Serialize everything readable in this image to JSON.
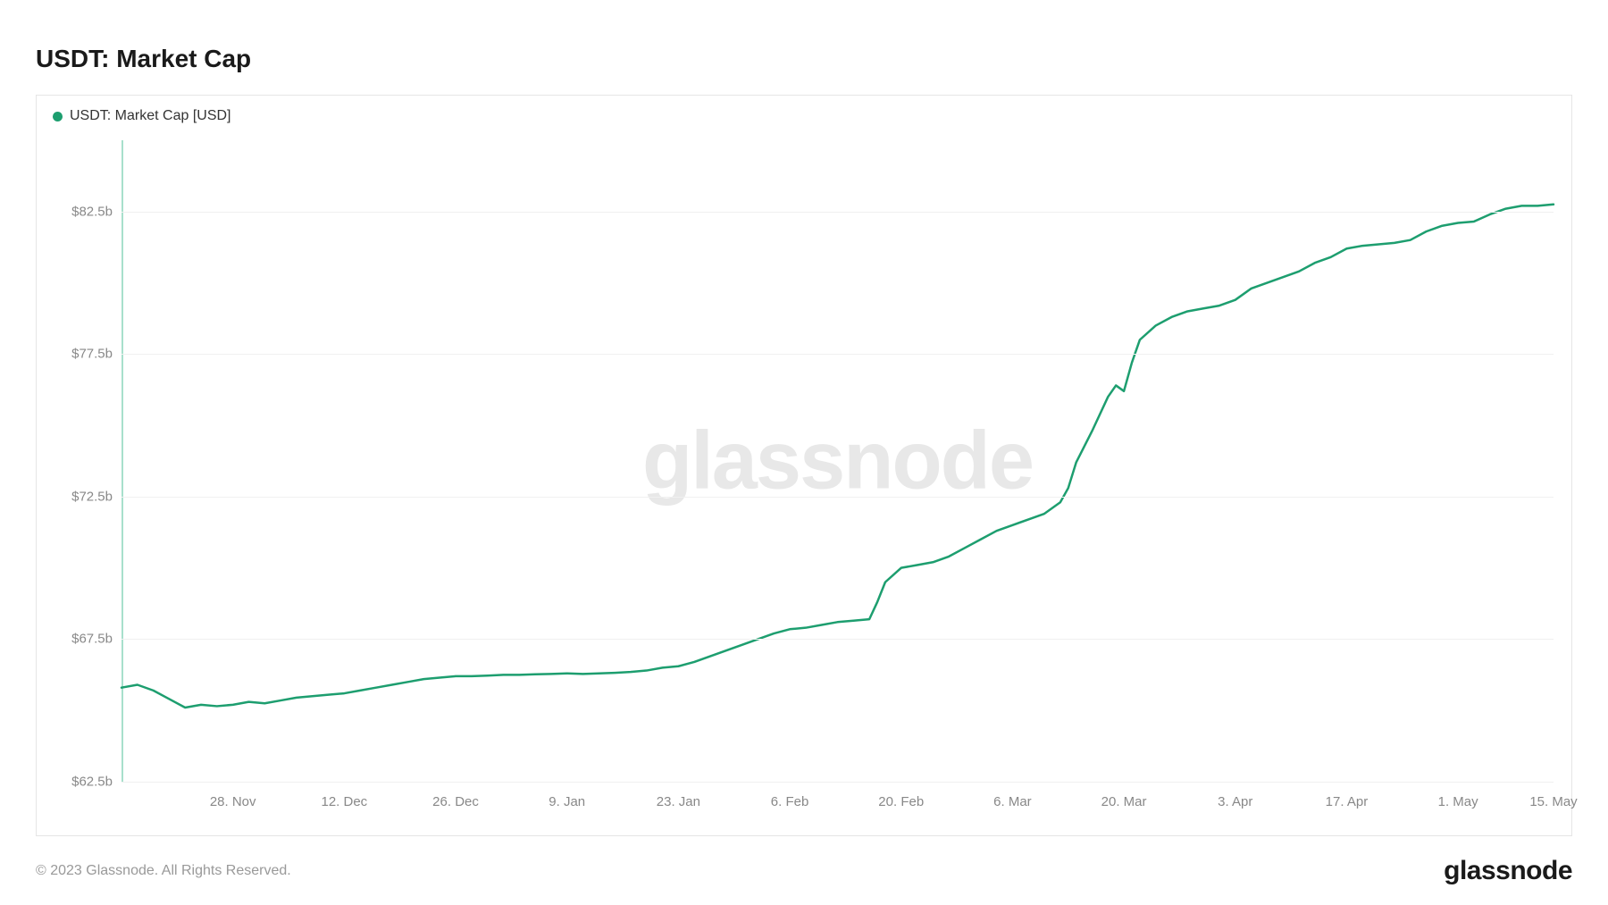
{
  "title": "USDT: Market Cap",
  "legend": {
    "label": "USDT: Market Cap [USD]",
    "color": "#1d9e6f"
  },
  "copyright": "© 2023 Glassnode. All Rights Reserved.",
  "brand": "glassnode",
  "watermark": "glassnode",
  "chart": {
    "type": "line",
    "background_color": "#ffffff",
    "grid_color": "#f0f0f0",
    "border_color": "#e5e5e5",
    "line_color": "#1d9e6f",
    "line_width": 2.5,
    "left_edge_color": "#a8e0cc",
    "ylim": [
      62.5,
      85
    ],
    "yticks": [
      {
        "v": 62.5,
        "label": "$62.5b"
      },
      {
        "v": 67.5,
        "label": "$67.5b"
      },
      {
        "v": 72.5,
        "label": "$72.5b"
      },
      {
        "v": 77.5,
        "label": "$77.5b"
      },
      {
        "v": 82.5,
        "label": "$82.5b"
      }
    ],
    "xlim": [
      0,
      180
    ],
    "xticks": [
      {
        "v": 14,
        "label": "28. Nov"
      },
      {
        "v": 28,
        "label": "12. Dec"
      },
      {
        "v": 42,
        "label": "26. Dec"
      },
      {
        "v": 56,
        "label": "9. Jan"
      },
      {
        "v": 70,
        "label": "23. Jan"
      },
      {
        "v": 84,
        "label": "6. Feb"
      },
      {
        "v": 98,
        "label": "20. Feb"
      },
      {
        "v": 112,
        "label": "6. Mar"
      },
      {
        "v": 126,
        "label": "20. Mar"
      },
      {
        "v": 140,
        "label": "3. Apr"
      },
      {
        "v": 154,
        "label": "17. Apr"
      },
      {
        "v": 168,
        "label": "1. May"
      },
      {
        "v": 180,
        "label": "15. May"
      }
    ],
    "series": [
      {
        "x": 0,
        "y": 65.8
      },
      {
        "x": 2,
        "y": 65.9
      },
      {
        "x": 4,
        "y": 65.7
      },
      {
        "x": 6,
        "y": 65.4
      },
      {
        "x": 8,
        "y": 65.1
      },
      {
        "x": 10,
        "y": 65.2
      },
      {
        "x": 12,
        "y": 65.15
      },
      {
        "x": 14,
        "y": 65.2
      },
      {
        "x": 16,
        "y": 65.3
      },
      {
        "x": 18,
        "y": 65.25
      },
      {
        "x": 20,
        "y": 65.35
      },
      {
        "x": 22,
        "y": 65.45
      },
      {
        "x": 24,
        "y": 65.5
      },
      {
        "x": 26,
        "y": 65.55
      },
      {
        "x": 28,
        "y": 65.6
      },
      {
        "x": 30,
        "y": 65.7
      },
      {
        "x": 32,
        "y": 65.8
      },
      {
        "x": 34,
        "y": 65.9
      },
      {
        "x": 36,
        "y": 66.0
      },
      {
        "x": 38,
        "y": 66.1
      },
      {
        "x": 40,
        "y": 66.15
      },
      {
        "x": 42,
        "y": 66.2
      },
      {
        "x": 44,
        "y": 66.2
      },
      {
        "x": 46,
        "y": 66.22
      },
      {
        "x": 48,
        "y": 66.25
      },
      {
        "x": 50,
        "y": 66.25
      },
      {
        "x": 52,
        "y": 66.27
      },
      {
        "x": 54,
        "y": 66.28
      },
      {
        "x": 56,
        "y": 66.3
      },
      {
        "x": 58,
        "y": 66.28
      },
      {
        "x": 60,
        "y": 66.3
      },
      {
        "x": 62,
        "y": 66.32
      },
      {
        "x": 64,
        "y": 66.35
      },
      {
        "x": 66,
        "y": 66.4
      },
      {
        "x": 68,
        "y": 66.5
      },
      {
        "x": 70,
        "y": 66.55
      },
      {
        "x": 72,
        "y": 66.7
      },
      {
        "x": 74,
        "y": 66.9
      },
      {
        "x": 76,
        "y": 67.1
      },
      {
        "x": 78,
        "y": 67.3
      },
      {
        "x": 80,
        "y": 67.5
      },
      {
        "x": 82,
        "y": 67.7
      },
      {
        "x": 84,
        "y": 67.85
      },
      {
        "x": 86,
        "y": 67.9
      },
      {
        "x": 88,
        "y": 68.0
      },
      {
        "x": 90,
        "y": 68.1
      },
      {
        "x": 92,
        "y": 68.15
      },
      {
        "x": 94,
        "y": 68.2
      },
      {
        "x": 95,
        "y": 68.8
      },
      {
        "x": 96,
        "y": 69.5
      },
      {
        "x": 98,
        "y": 70.0
      },
      {
        "x": 100,
        "y": 70.1
      },
      {
        "x": 102,
        "y": 70.2
      },
      {
        "x": 104,
        "y": 70.4
      },
      {
        "x": 106,
        "y": 70.7
      },
      {
        "x": 108,
        "y": 71.0
      },
      {
        "x": 110,
        "y": 71.3
      },
      {
        "x": 112,
        "y": 71.5
      },
      {
        "x": 114,
        "y": 71.7
      },
      {
        "x": 116,
        "y": 71.9
      },
      {
        "x": 118,
        "y": 72.3
      },
      {
        "x": 119,
        "y": 72.8
      },
      {
        "x": 120,
        "y": 73.7
      },
      {
        "x": 122,
        "y": 74.8
      },
      {
        "x": 124,
        "y": 76.0
      },
      {
        "x": 125,
        "y": 76.4
      },
      {
        "x": 126,
        "y": 76.2
      },
      {
        "x": 127,
        "y": 77.2
      },
      {
        "x": 128,
        "y": 78.0
      },
      {
        "x": 130,
        "y": 78.5
      },
      {
        "x": 132,
        "y": 78.8
      },
      {
        "x": 134,
        "y": 79.0
      },
      {
        "x": 136,
        "y": 79.1
      },
      {
        "x": 138,
        "y": 79.2
      },
      {
        "x": 140,
        "y": 79.4
      },
      {
        "x": 142,
        "y": 79.8
      },
      {
        "x": 144,
        "y": 80.0
      },
      {
        "x": 146,
        "y": 80.2
      },
      {
        "x": 148,
        "y": 80.4
      },
      {
        "x": 150,
        "y": 80.7
      },
      {
        "x": 152,
        "y": 80.9
      },
      {
        "x": 154,
        "y": 81.2
      },
      {
        "x": 156,
        "y": 81.3
      },
      {
        "x": 158,
        "y": 81.35
      },
      {
        "x": 160,
        "y": 81.4
      },
      {
        "x": 162,
        "y": 81.5
      },
      {
        "x": 164,
        "y": 81.8
      },
      {
        "x": 166,
        "y": 82.0
      },
      {
        "x": 168,
        "y": 82.1
      },
      {
        "x": 170,
        "y": 82.15
      },
      {
        "x": 172,
        "y": 82.4
      },
      {
        "x": 174,
        "y": 82.6
      },
      {
        "x": 176,
        "y": 82.7
      },
      {
        "x": 178,
        "y": 82.7
      },
      {
        "x": 180,
        "y": 82.75
      }
    ]
  }
}
